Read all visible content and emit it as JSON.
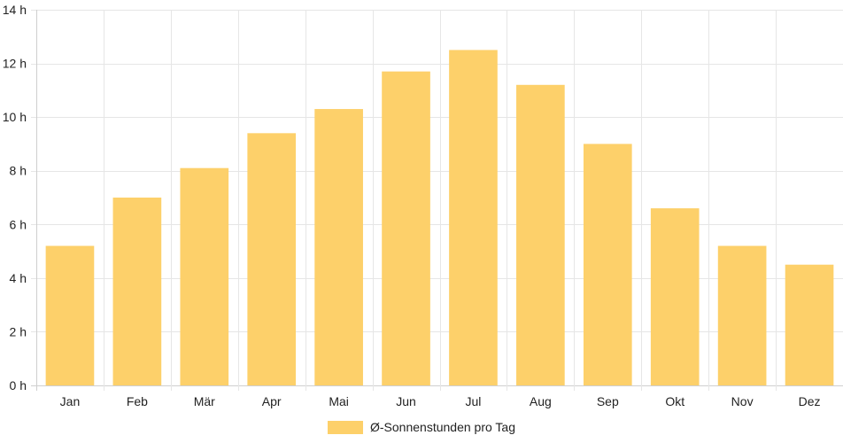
{
  "chart_data": {
    "type": "bar",
    "categories": [
      "Jan",
      "Feb",
      "Mär",
      "Apr",
      "Mai",
      "Jun",
      "Jul",
      "Aug",
      "Sep",
      "Okt",
      "Nov",
      "Dez"
    ],
    "series": [
      {
        "name": "Ø-Sonnenstunden pro Tag",
        "values": [
          5.2,
          7.0,
          8.1,
          9.4,
          10.3,
          11.7,
          12.5,
          11.2,
          9.0,
          6.6,
          5.2,
          4.5
        ],
        "color": "#fdd06a"
      }
    ],
    "y_ticks": [
      "0 h",
      "2 h",
      "4 h",
      "6 h",
      "8 h",
      "10 h",
      "12 h",
      "14 h"
    ],
    "ylim": [
      0,
      14
    ],
    "y_step": 2,
    "grid": true,
    "legend_position": "bottom",
    "grid_color": "#e6e6e6",
    "axis_color": "#cfcfcf"
  }
}
